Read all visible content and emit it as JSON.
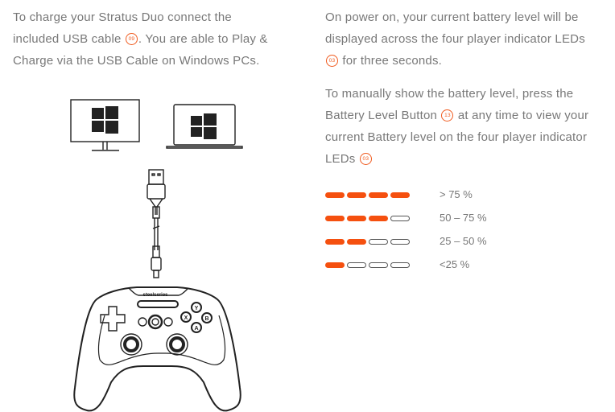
{
  "left": {
    "line1": "To charge your Stratus Duo connect the",
    "line2_a": "included USB cable",
    "badge_cable": "09",
    "line2_b": ". You are able to Play &",
    "line3": "Charge via the USB Cable on Windows PCs."
  },
  "right": {
    "p1_line1": "On power on, your current battery level will be",
    "p1_line2": "displayed across the four player indicator LEDs",
    "badge_leds": "03",
    "p1_line3": " for three seconds.",
    "p2_line1": "To manually show the battery level, press the",
    "p2_line2_a": "Battery Level Button",
    "badge_button": "13",
    "p2_line2_b": " at any time to view your",
    "p2_line3": "current Battery level on the four player indicator",
    "p2_line4": "LEDs",
    "badge_leds2": "03"
  },
  "battery_levels": [
    {
      "label": "> 75 %",
      "lit": 4
    },
    {
      "label": "50 – 75 %",
      "lit": 3
    },
    {
      "label": "25 – 50 %",
      "lit": 2
    },
    {
      "label": "<25 %",
      "lit": 1
    }
  ],
  "illustration": {
    "brand_logo": "steelseries",
    "buttons": [
      "Y",
      "X",
      "B",
      "A"
    ],
    "icons": [
      "windows-monitor-icon",
      "windows-laptop-icon",
      "usb-cable-icon",
      "controller-icon"
    ]
  },
  "colors": {
    "accent": "#f5500f",
    "text": "#787878"
  }
}
